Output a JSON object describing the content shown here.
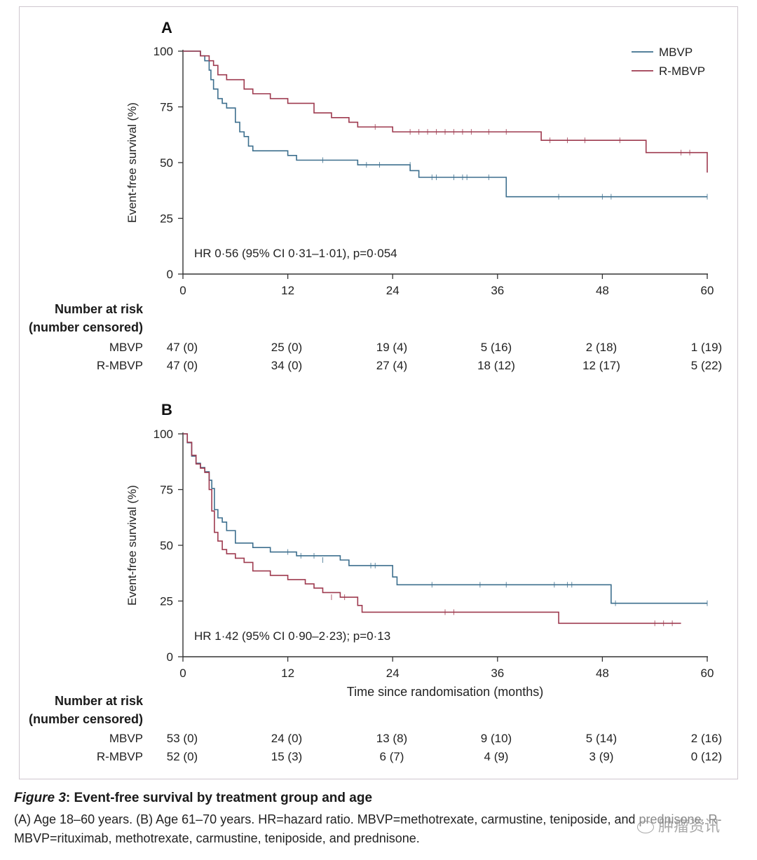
{
  "colors": {
    "mbvp": "#3d6f8e",
    "rmbvp": "#9e3a4f",
    "axis": "#333333",
    "frame": "#cfc7cf"
  },
  "chart_data": [
    {
      "type": "line",
      "step": true,
      "panel_label": "A",
      "ylabel": "Event-free survival (%)",
      "xlabel": "",
      "xlim": [
        0,
        60
      ],
      "ylim": [
        0,
        100
      ],
      "xticks": [
        "0",
        "12",
        "24",
        "36",
        "48",
        "60"
      ],
      "yticks": [
        "0",
        "25",
        "50",
        "75",
        "100"
      ],
      "legend": {
        "position": "top-right",
        "entries": [
          "MBVP",
          "R-MBVP"
        ]
      },
      "annotation": "HR 0·56 (95% CI 0·31–1·01), p=0·054",
      "series": [
        {
          "name": "MBVP",
          "x": [
            0,
            2,
            2.5,
            3,
            3.2,
            3.5,
            4,
            4.5,
            5,
            6,
            6.5,
            7,
            7.5,
            8,
            12,
            13,
            20,
            21,
            26,
            27,
            28,
            37,
            60
          ],
          "y": [
            100,
            97.9,
            95.7,
            91.5,
            87.2,
            83,
            78.7,
            76.6,
            74.5,
            68.1,
            63.8,
            61.7,
            57.4,
            55.3,
            53.2,
            51.1,
            49,
            49,
            46.4,
            43.4,
            43.4,
            34.7,
            34.7
          ],
          "censored_x": [
            16,
            21,
            22.5,
            26,
            28.5,
            29,
            31,
            32,
            32.5,
            35,
            43,
            48,
            49,
            60
          ],
          "censored_y": [
            51.1,
            49,
            49,
            49,
            43.4,
            43.4,
            43.4,
            43.4,
            43.4,
            43.4,
            34.7,
            34.7,
            34.7,
            34.7
          ]
        },
        {
          "name": "R-MBVP",
          "x": [
            0,
            2,
            3,
            3.5,
            4,
            5,
            7,
            8,
            10,
            12,
            15,
            17,
            19,
            20,
            24,
            28,
            41,
            53,
            60
          ],
          "y": [
            100,
            97.9,
            95.7,
            93.6,
            89.4,
            87.2,
            83,
            80.9,
            78.7,
            76.6,
            72.3,
            70.2,
            68.1,
            66,
            63.8,
            63.8,
            60,
            54.5,
            45.5
          ],
          "censored_x": [
            22,
            26,
            27,
            28,
            29,
            30,
            31,
            32,
            33,
            35,
            37,
            42,
            44,
            46,
            50,
            57,
            58
          ],
          "censored_y": [
            66,
            63.8,
            63.8,
            63.8,
            63.8,
            63.8,
            63.8,
            63.8,
            63.8,
            63.8,
            63.8,
            60,
            60,
            60,
            60,
            54.5,
            54.5
          ]
        }
      ],
      "risk_table": {
        "header_line1": "Number at risk",
        "header_line2": "(number censored)",
        "rows": [
          {
            "label": "MBVP",
            "values": [
              "47 (0)",
              "25 (0)",
              "19 (4)",
              "5 (16)",
              "2 (18)",
              "1 (19)"
            ]
          },
          {
            "label": "R-MBVP",
            "values": [
              "47 (0)",
              "34 (0)",
              "27 (4)",
              "18 (12)",
              "12 (17)",
              "5 (22)"
            ]
          }
        ]
      }
    },
    {
      "type": "line",
      "step": true,
      "panel_label": "B",
      "ylabel": "Event-free survival (%)",
      "xlabel": "Time since randomisation (months)",
      "xlim": [
        0,
        60
      ],
      "ylim": [
        0,
        100
      ],
      "xticks": [
        "0",
        "12",
        "24",
        "36",
        "48",
        "60"
      ],
      "yticks": [
        "0",
        "25",
        "50",
        "75",
        "100"
      ],
      "legend": null,
      "annotation": "HR 1·42 (95% CI 0·90–2·23); p=0·13",
      "series": [
        {
          "name": "MBVP",
          "x": [
            0,
            0.5,
            1,
            1.5,
            2,
            2.5,
            3,
            3.3,
            3.6,
            4,
            4.5,
            5,
            6,
            8,
            10,
            13,
            18,
            19,
            24,
            24.5,
            49,
            60
          ],
          "y": [
            100,
            96,
            90,
            86.8,
            84.9,
            83,
            79.2,
            75.5,
            66,
            62.3,
            60.4,
            56.6,
            51,
            49,
            47,
            45.3,
            43.4,
            40.9,
            35.8,
            32.3,
            24,
            24
          ],
          "censored_x": [
            12,
            13.5,
            15,
            16,
            21.5,
            22,
            28.5,
            34,
            37,
            42.5,
            44,
            44.5,
            49.5,
            60
          ],
          "censored_y": [
            47,
            45.3,
            45.3,
            43.4,
            40.9,
            40.9,
            32.3,
            32.3,
            32.3,
            32.3,
            32.3,
            32.3,
            24,
            24
          ]
        },
        {
          "name": "R-MBVP",
          "x": [
            0,
            0.5,
            1,
            1.5,
            2,
            2.5,
            3,
            3.3,
            3.6,
            4,
            4.5,
            5,
            6,
            7,
            8,
            10,
            12,
            14,
            15,
            16,
            18,
            20,
            20.5,
            43,
            57
          ],
          "y": [
            100,
            96.2,
            90.4,
            86.5,
            84.6,
            82.7,
            75,
            65.4,
            55.8,
            51.9,
            48.1,
            46.2,
            44.2,
            42.3,
            38.5,
            36.5,
            34.6,
            32.7,
            30.8,
            28.8,
            26.7,
            23,
            20,
            15,
            15
          ],
          "censored_x": [
            17,
            18.5,
            30,
            31,
            54,
            55,
            56
          ],
          "censored_y": [
            26.7,
            26.7,
            20,
            20,
            15,
            15,
            15
          ]
        }
      ],
      "risk_table": {
        "header_line1": "Number at risk",
        "header_line2": "(number censored)",
        "rows": [
          {
            "label": "MBVP",
            "values": [
              "53 (0)",
              "24 (0)",
              "13 (8)",
              "9 (10)",
              "5 (14)",
              "2 (16)"
            ]
          },
          {
            "label": "R-MBVP",
            "values": [
              "52 (0)",
              "15 (3)",
              "6 (7)",
              "4 (9)",
              "3 (9)",
              "0 (12)"
            ]
          }
        ]
      }
    }
  ],
  "caption": {
    "figure_label": "Figure 3",
    "title": ": Event-free survival by treatment group and age",
    "body": "(A) Age 18–60 years. (B) Age 61–70 years. HR=hazard ratio. MBVP=methotrexate, carmustine, teniposide, and prednisone. R-MBVP=rituximab, methotrexate, carmustine, teniposide, and prednisone."
  },
  "watermark": {
    "text": "肿瘤资讯"
  }
}
